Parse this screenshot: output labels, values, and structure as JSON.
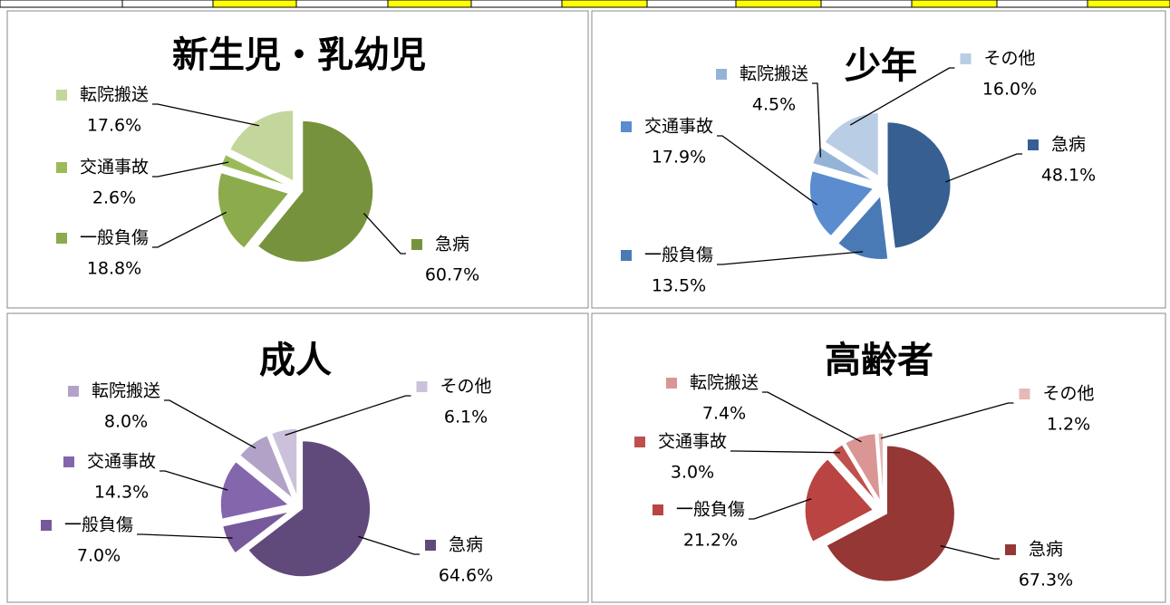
{
  "chart_data": [
    {
      "type": "pie",
      "title": "新生児・乳幼児",
      "categories": [
        "急病",
        "一般負傷",
        "交通事故",
        "転院搬送"
      ],
      "values": [
        60.7,
        18.8,
        2.6,
        17.6
      ],
      "value_labels": [
        "60.7%",
        "18.8%",
        "2.6%",
        "17.6%"
      ],
      "colors": [
        "#76923c",
        "#8cab4c",
        "#9bbb59",
        "#c3d69b"
      ]
    },
    {
      "type": "pie",
      "title": "少年",
      "categories": [
        "急病",
        "一般負傷",
        "交通事故",
        "転院搬送",
        "その他"
      ],
      "values": [
        48.1,
        13.5,
        17.9,
        4.5,
        16.0
      ],
      "value_labels": [
        "48.1%",
        "13.5%",
        "17.9%",
        "4.5%",
        "16.0%"
      ],
      "colors": [
        "#375f91",
        "#4a7ab5",
        "#5a8ccf",
        "#95b3d7",
        "#b9cde5"
      ]
    },
    {
      "type": "pie",
      "title": "成人",
      "categories": [
        "急病",
        "一般負傷",
        "交通事故",
        "転院搬送",
        "その他"
      ],
      "values": [
        64.6,
        7.0,
        14.3,
        8.0,
        6.1
      ],
      "value_labels": [
        "64.6%",
        "7.0%",
        "14.3%",
        "8.0%",
        "6.1%"
      ],
      "colors": [
        "#604a7b",
        "#76599a",
        "#8466ad",
        "#b3a2c7",
        "#ccc1da"
      ]
    },
    {
      "type": "pie",
      "title": "高齢者",
      "categories": [
        "急病",
        "一般負傷",
        "交通事故",
        "転院搬送",
        "その他"
      ],
      "values": [
        67.3,
        21.2,
        3.0,
        7.4,
        1.2
      ],
      "value_labels": [
        "67.3%",
        "21.2%",
        "3.0%",
        "7.4%",
        "1.2%"
      ],
      "colors": [
        "#953735",
        "#b94441",
        "#c0504d",
        "#d99694",
        "#e6b9b8"
      ]
    }
  ]
}
